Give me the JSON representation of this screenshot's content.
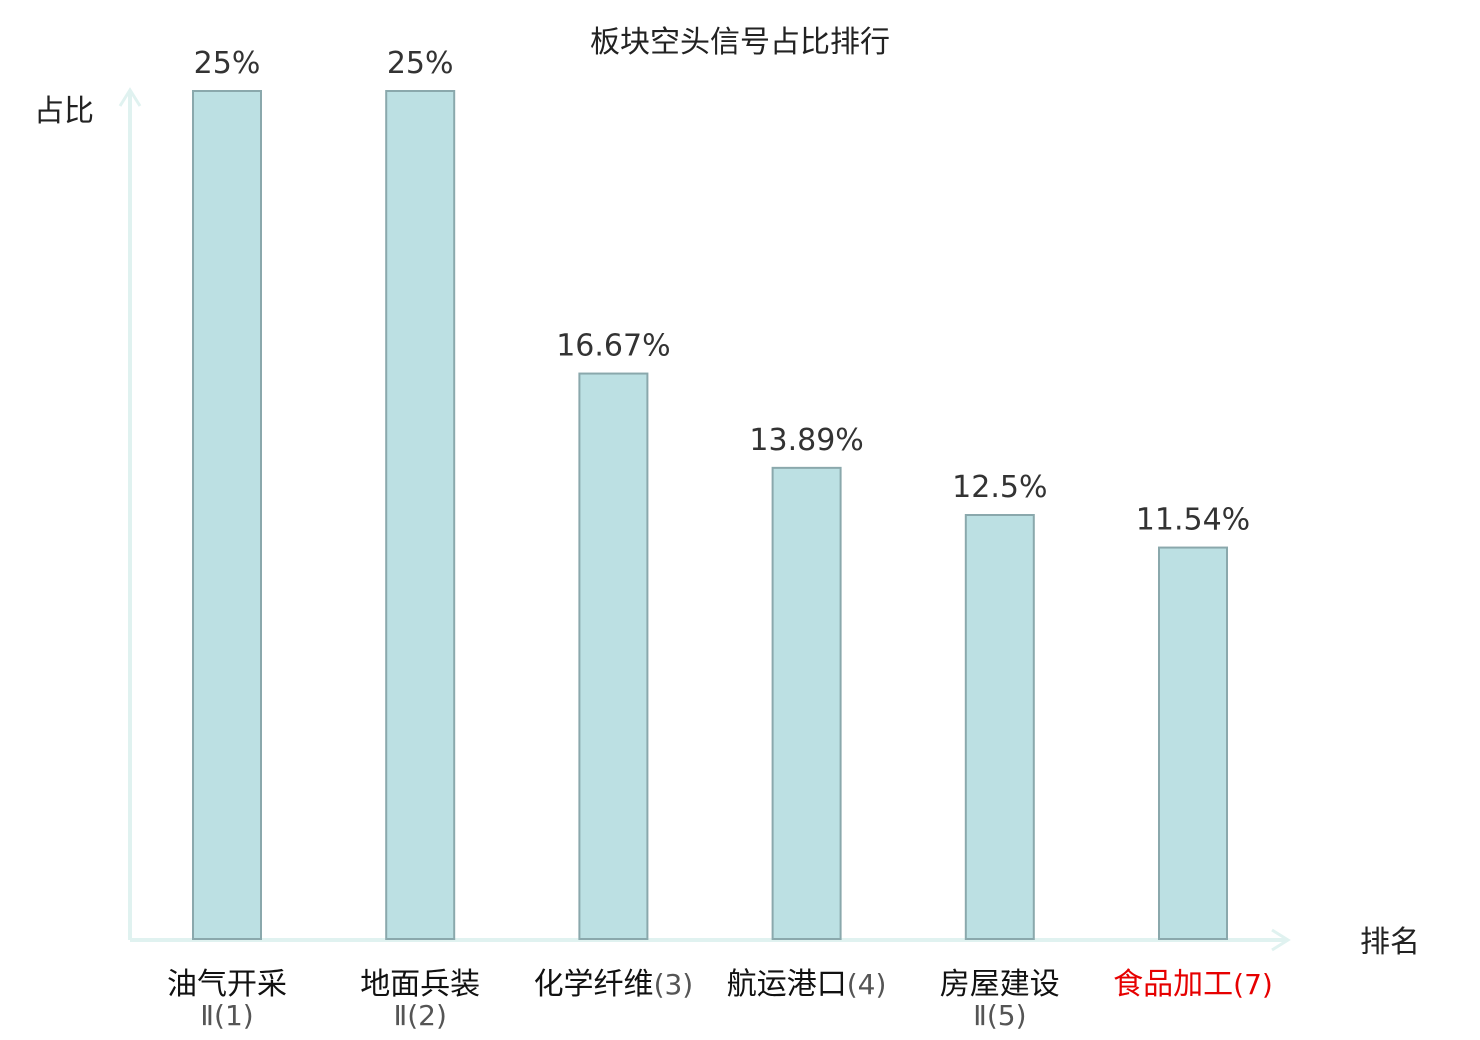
{
  "chart_data": {
    "type": "bar",
    "title": "板块空头信号占比排行",
    "ylabel": "占比",
    "xlabel": "排名",
    "ylim": [
      0,
      25
    ],
    "grid": false,
    "categories": [
      {
        "name": "油气开采",
        "rank": "Ⅱ(1)",
        "value": 25,
        "label": "25%",
        "highlight": false
      },
      {
        "name": "地面兵装",
        "rank": "Ⅱ(2)",
        "value": 25,
        "label": "25%",
        "highlight": false
      },
      {
        "name": "化学纤维",
        "rank": "(3)",
        "value": 16.67,
        "label": "16.67%",
        "highlight": false
      },
      {
        "name": "航运港口",
        "rank": "(4)",
        "value": 13.89,
        "label": "13.89%",
        "highlight": false
      },
      {
        "name": "房屋建设",
        "rank": "Ⅱ(5)",
        "value": 12.5,
        "label": "12.5%",
        "highlight": false
      },
      {
        "name": "食品加工",
        "rank": "(7)",
        "value": 11.54,
        "label": "11.54%",
        "highlight": true
      }
    ],
    "colors": {
      "bar_fill": "#bce0e3",
      "bar_stroke": "#8aa8ac",
      "axis": "#e0f2f0",
      "highlight_text": "#e60000",
      "normal_text": "#111111",
      "suffix_text": "#555555"
    }
  }
}
